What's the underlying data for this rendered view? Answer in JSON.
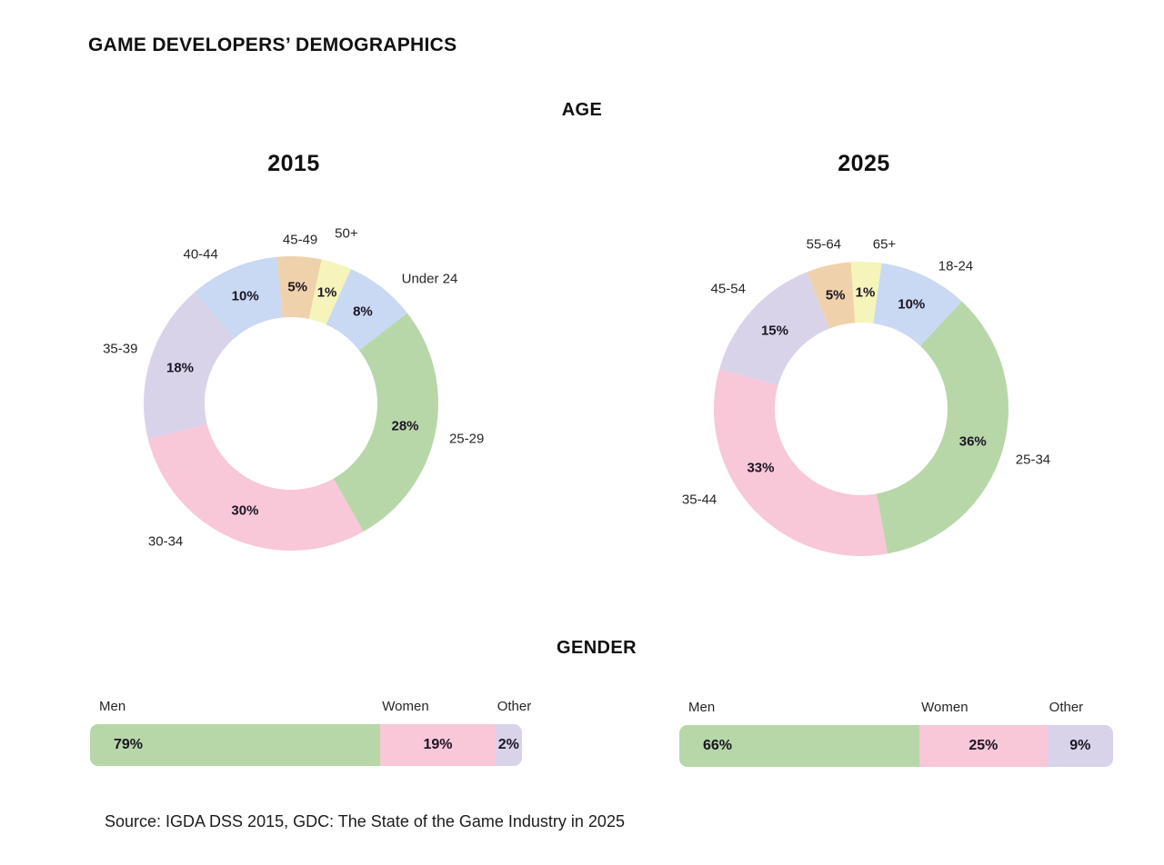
{
  "header": {
    "title": "GAME DEVELOPERS’ DEMOGRAPHICS"
  },
  "sections": {
    "age": {
      "heading": "AGE"
    },
    "gender": {
      "heading": "GENDER"
    }
  },
  "source": {
    "text": "Source: IGDA DSS 2015, GDC: The State of the Game Industry in 2025"
  },
  "palette": {
    "green": "#b7d7a8",
    "pink": "#f8c7d8",
    "lavender": "#d9d3ea",
    "blue": "#c9d8f3",
    "tan": "#efd2ab",
    "yellow": "#f5f4bb",
    "label_text": "#1b1523",
    "heading_text": "#101010"
  },
  "chart_data": [
    {
      "type": "pie",
      "style": "donut",
      "section": "AGE",
      "title": "2015",
      "categories": [
        "Under 24",
        "25-29",
        "30-34",
        "35-39",
        "40-44",
        "45-49",
        "50+"
      ],
      "values": [
        8,
        28,
        30,
        18,
        10,
        5,
        1
      ],
      "value_labels": [
        "8%",
        "28%",
        "30%",
        "18%",
        "10%",
        "5%",
        "1%"
      ],
      "color_keys": [
        "blue",
        "green",
        "pink",
        "lavender",
        "blue",
        "tan",
        "yellow"
      ],
      "legend_position": "around-slices"
    },
    {
      "type": "pie",
      "style": "donut",
      "section": "AGE",
      "title": "2025",
      "categories": [
        "18-24",
        "25-34",
        "35-44",
        "45-54",
        "55-64",
        "65+"
      ],
      "values": [
        10,
        36,
        33,
        15,
        5,
        1
      ],
      "value_labels": [
        "10%",
        "36%",
        "33%",
        "15%",
        "5%",
        "1%"
      ],
      "color_keys": [
        "blue",
        "green",
        "pink",
        "lavender",
        "tan",
        "yellow"
      ],
      "legend_position": "around-slices"
    },
    {
      "type": "bar",
      "style": "stacked-horizontal",
      "section": "GENDER",
      "title": "2015",
      "categories": [
        "Men",
        "Women",
        "Other"
      ],
      "values": [
        79,
        19,
        2
      ],
      "value_labels": [
        "79%",
        "19%",
        "2%"
      ],
      "color_keys": [
        "green",
        "pink",
        "lavender"
      ],
      "xlim": [
        0,
        100
      ]
    },
    {
      "type": "bar",
      "style": "stacked-horizontal",
      "section": "GENDER",
      "title": "2025",
      "categories": [
        "Men",
        "Women",
        "Other"
      ],
      "values": [
        66,
        25,
        9
      ],
      "value_labels": [
        "66%",
        "25%",
        "9%"
      ],
      "color_keys": [
        "green",
        "pink",
        "lavender"
      ],
      "xlim": [
        0,
        100
      ]
    }
  ]
}
